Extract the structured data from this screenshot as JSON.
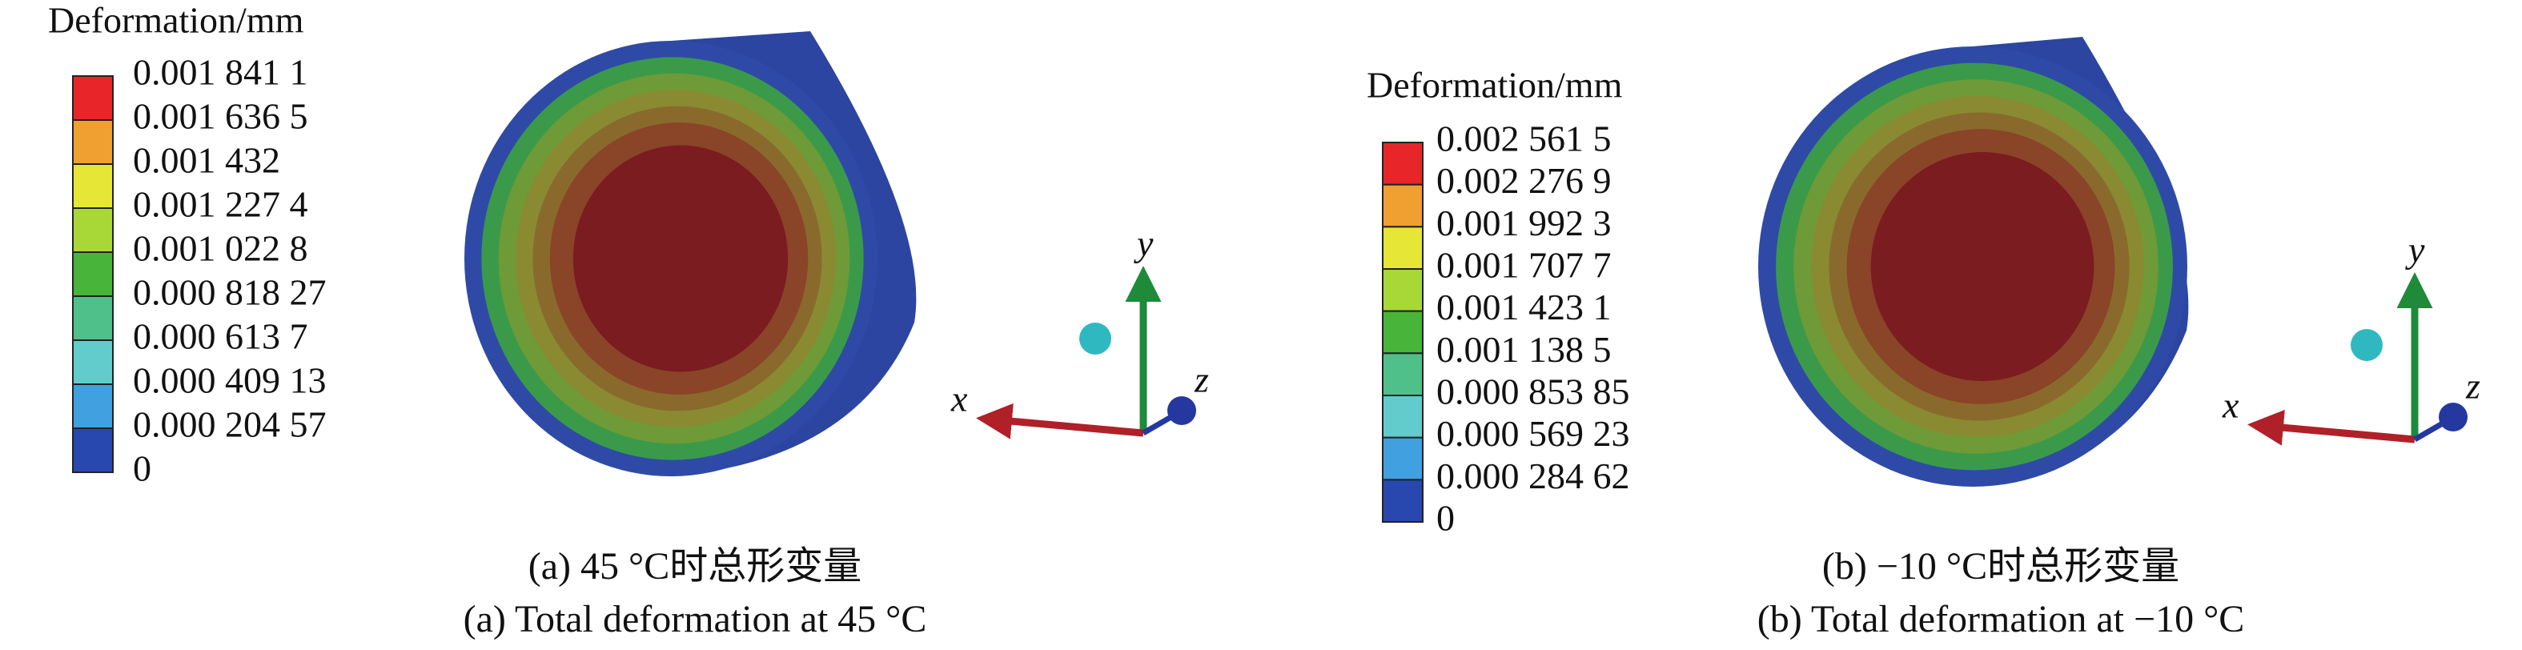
{
  "panels": [
    {
      "legend_title": "Deformation/mm",
      "legend_labels": [
        "0.001 841 1",
        "0.001 636 5",
        "0.001 432",
        "0.001 227 4",
        "0.001 022 8",
        "0.000 818 27",
        "0.000 613 7",
        "0.000 409 13",
        "0.000 204 57",
        "0"
      ],
      "axes": {
        "x": "x",
        "y": "y",
        "z": "z"
      },
      "caption_cn": "(a) 45 °C时总形变量",
      "caption_en": "(a) Total deformation at 45 °C"
    },
    {
      "legend_title": "Deformation/mm",
      "legend_labels": [
        "0.002 561 5",
        "0.002 276 9",
        "0.001 992 3",
        "0.001 707 7",
        "0.001 423 1",
        "0.001 138 5",
        "0.000 853 85",
        "0.000 569 23",
        "0.000 284 62",
        "0"
      ],
      "axes": {
        "x": "x",
        "y": "y",
        "z": "z"
      },
      "caption_cn": "(b) −10 °C时总形变量",
      "caption_en": "(b) Total deformation at −10 °C"
    }
  ]
}
